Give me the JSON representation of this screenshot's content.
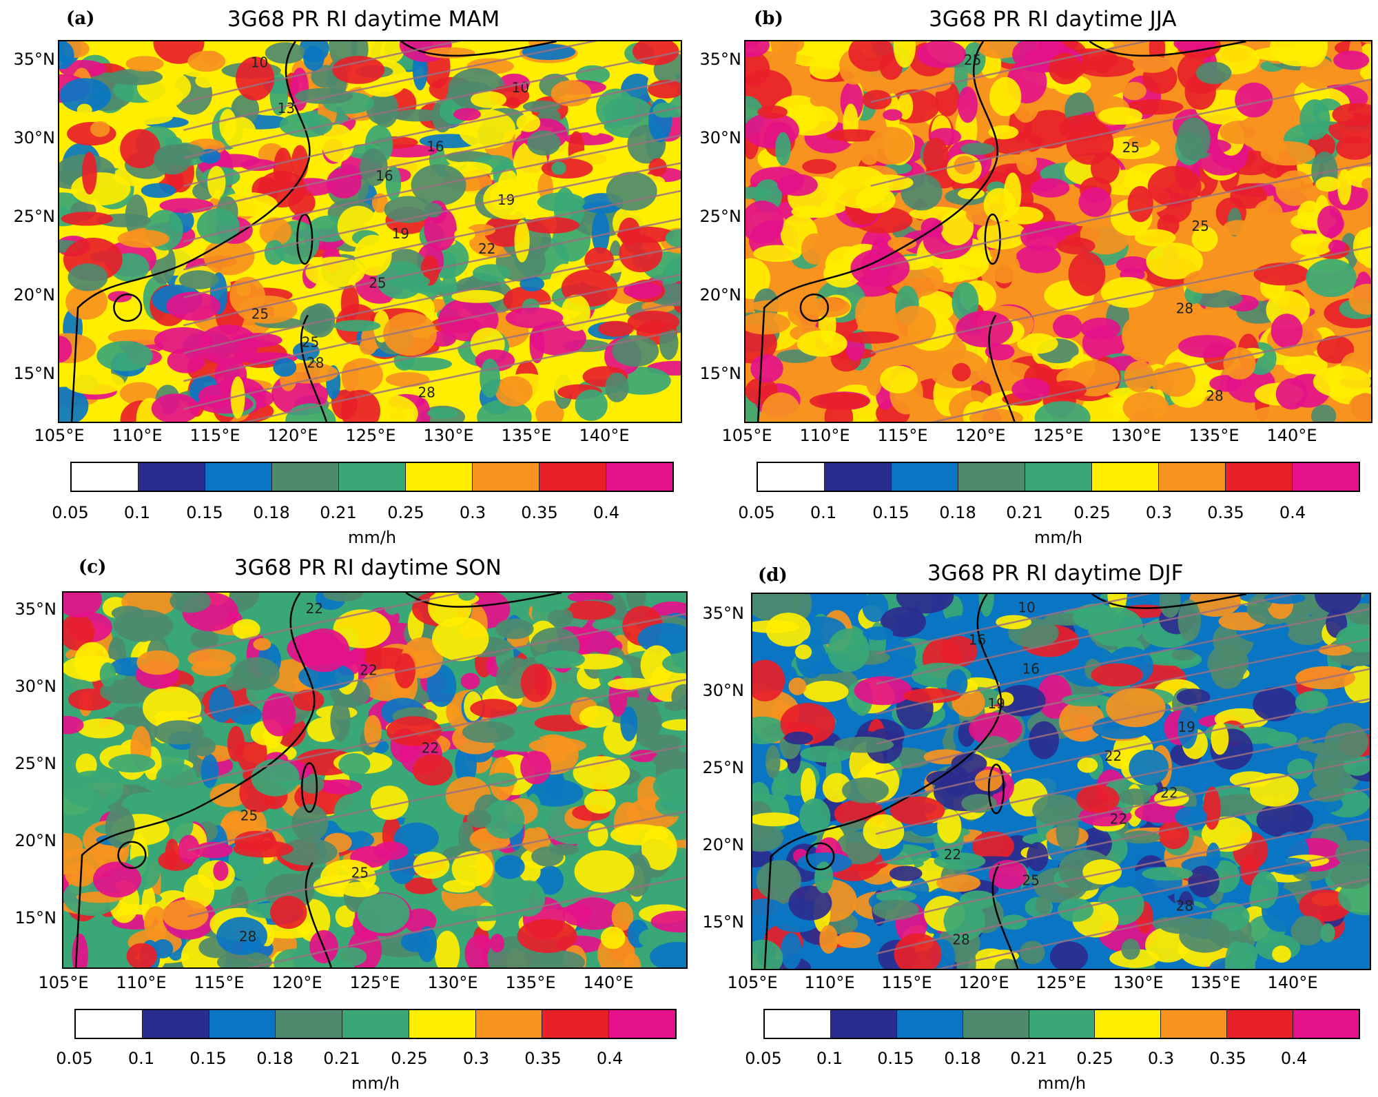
{
  "figure": {
    "colorbar": {
      "levels": [
        "0.05",
        "0.1",
        "0.15",
        "0.18",
        "0.21",
        "0.25",
        "0.3",
        "0.35",
        "0.4"
      ],
      "colors": [
        "#ffffff",
        "#2b2d8e",
        "#0a76c3",
        "#4e8a6e",
        "#3aa876",
        "#ffee00",
        "#f7931e",
        "#e8202a",
        "#e4118a"
      ],
      "unit": "mm/h"
    },
    "lat_labels": [
      "35°N",
      "30°N",
      "25°N",
      "20°N",
      "15°N"
    ],
    "lon_labels": [
      "105°E",
      "110°E",
      "115°E",
      "120°E",
      "125°E",
      "130°E",
      "135°E",
      "140°E"
    ],
    "contour_color": "#9a7080"
  },
  "panels": [
    {
      "letter": "(a)",
      "title": "3G68 PR RI daytime MAM",
      "palette_weights": [
        0,
        0,
        0.08,
        0.18,
        0.17,
        0.18,
        0.12,
        0.12,
        0.15
      ],
      "contour_labels": [
        "10",
        "10",
        "13",
        "16",
        "16",
        "19",
        "19",
        "22",
        "25",
        "25",
        "25",
        "28",
        "28"
      ]
    },
    {
      "letter": "(b)",
      "title": "3G68 PR RI daytime JJA",
      "palette_weights": [
        0,
        0,
        0,
        0.05,
        0.08,
        0.22,
        0.2,
        0.23,
        0.22
      ],
      "contour_labels": [
        "25",
        "25",
        "25",
        "28",
        "28"
      ]
    },
    {
      "letter": "(c)",
      "title": "3G68 PR RI daytime SON",
      "palette_weights": [
        0,
        0,
        0.1,
        0.18,
        0.12,
        0.17,
        0.14,
        0.13,
        0.16
      ],
      "contour_labels": [
        "22",
        "22",
        "22",
        "25",
        "25",
        "28"
      ]
    },
    {
      "letter": "(d)",
      "title": "3G68 PR RI daytime DJF",
      "palette_weights": [
        0,
        0.12,
        0.2,
        0.2,
        0.18,
        0.12,
        0.07,
        0.06,
        0.05
      ],
      "contour_labels": [
        "10",
        "16",
        "16",
        "19",
        "19",
        "22",
        "22",
        "22",
        "22",
        "25",
        "28",
        "28"
      ]
    }
  ]
}
